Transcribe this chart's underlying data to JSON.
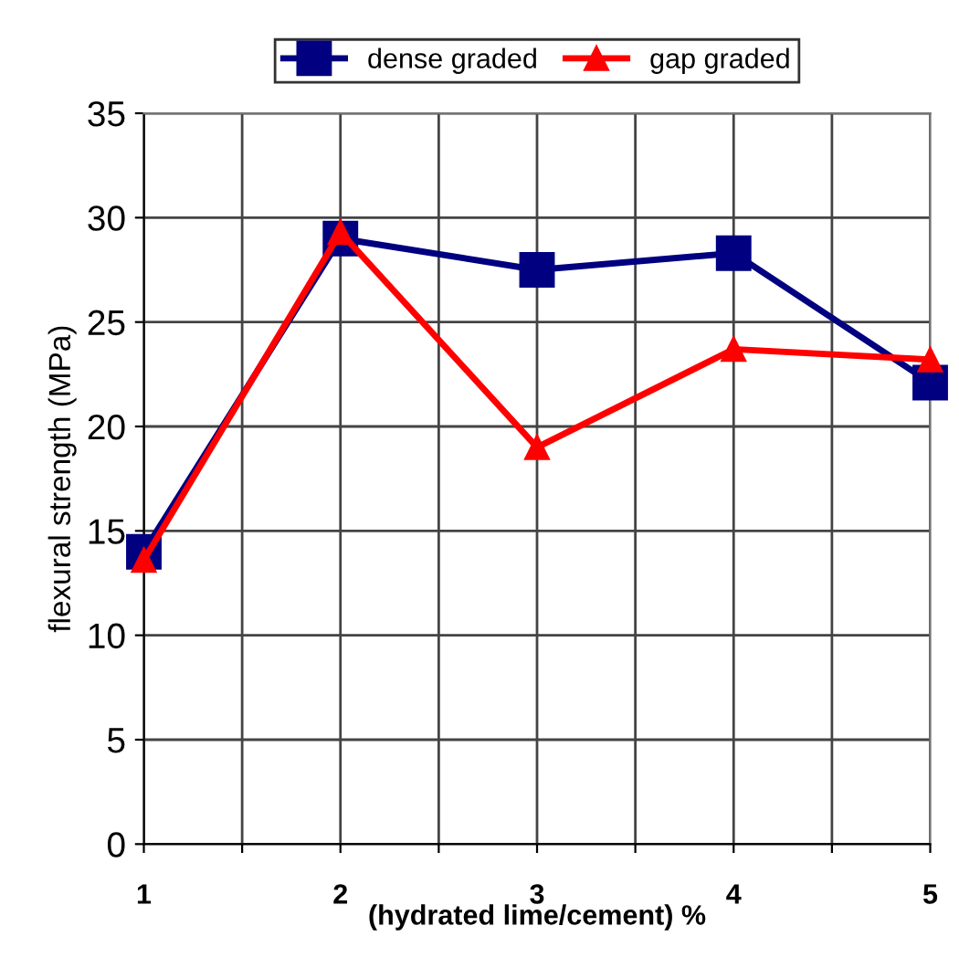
{
  "chart_data": {
    "type": "line",
    "xlabel": "(hydrated lime/cement) %",
    "ylabel": "flexural strength (MPa)",
    "x": [
      1,
      2,
      3,
      4,
      5
    ],
    "series": [
      {
        "name": "dense graded",
        "color": "#000080",
        "marker": "square",
        "values": [
          14.0,
          29.0,
          27.5,
          28.3,
          22.1
        ]
      },
      {
        "name": "gap graded",
        "color": "#ff0000",
        "marker": "triangle",
        "values": [
          13.6,
          29.3,
          19.0,
          23.7,
          23.2
        ]
      }
    ],
    "xlim": [
      1,
      5
    ],
    "xticks": [
      1,
      {
        "value": 1.5,
        "label": null
      },
      2,
      {
        "value": 2.5,
        "label": null
      },
      3,
      {
        "value": 3.5,
        "label": null
      },
      4,
      {
        "value": 4.5,
        "label": null
      },
      5
    ],
    "ylim": [
      0,
      35
    ],
    "yticks": [
      0,
      5,
      10,
      15,
      20,
      25,
      30,
      35
    ],
    "grid": true,
    "legend": "top",
    "line_style": "solid"
  }
}
